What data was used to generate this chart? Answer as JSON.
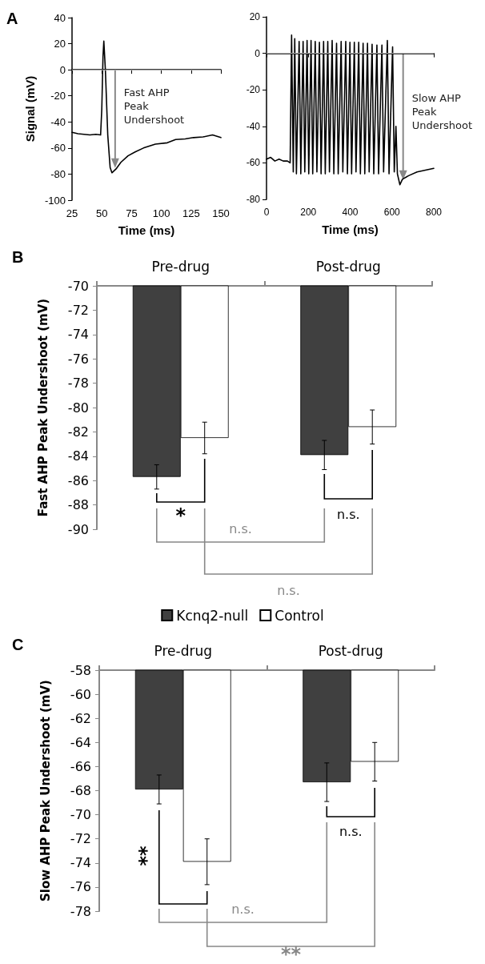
{
  "chart_data": [
    {
      "type": "line",
      "xlabel": "Time (ms)",
      "ylabel": "Signal (mV)",
      "xlim": [
        25,
        150
      ],
      "xticks": [
        25,
        50,
        75,
        100,
        125,
        150
      ],
      "ylim": [
        -100,
        40
      ],
      "yticks": [
        -100,
        -80,
        -60,
        -40,
        -20,
        0,
        20,
        40
      ],
      "marker": "none",
      "line_style": "solid",
      "series": [
        {
          "color": "#000000",
          "x": [
            25,
            30,
            35,
            40,
            45,
            49,
            50,
            51,
            51.7,
            53,
            55,
            57,
            58.5,
            62,
            66,
            72,
            78,
            85,
            95,
            105,
            112,
            120,
            127,
            135,
            143,
            150
          ],
          "values": [
            -48,
            -49,
            -49.5,
            -50,
            -49.5,
            -50,
            -30,
            10,
            22,
            0,
            -50,
            -75,
            -79,
            -76,
            -71,
            -66,
            -63,
            -60,
            -57,
            -56,
            -53.5,
            -53,
            -52,
            -51.5,
            -50,
            -52
          ]
        }
      ],
      "ref_lines": [
        {
          "axis": "y",
          "value": 0,
          "color": "#aaaaaa"
        }
      ],
      "annotations": [
        "A",
        "Fast AHP Peak Undershoot"
      ]
    },
    {
      "type": "line",
      "xlabel": "Time (ms)",
      "xlim": [
        0,
        800
      ],
      "xticks": [
        0,
        200,
        400,
        600,
        800
      ],
      "ylim": [
        -80,
        20
      ],
      "yticks": [
        -80,
        -60,
        -40,
        -20,
        0,
        20
      ],
      "marker": "none",
      "line_style": "solid",
      "series": [
        {
          "color": "#000000",
          "x": [
            0,
            20,
            40,
            60,
            80,
            100,
            113,
            120,
            128,
            135,
            143,
            156,
            164,
            175,
            183,
            194,
            202,
            213,
            221,
            233,
            241,
            253,
            261,
            273,
            281,
            293,
            301,
            314,
            322,
            335,
            343,
            357,
            365,
            379,
            387,
            399,
            407,
            420,
            428,
            441,
            449,
            462,
            470,
            483,
            491,
            505,
            513,
            528,
            536,
            552,
            560,
            578,
            586,
            603,
            611,
            619,
            626,
            638,
            650,
            680,
            720,
            760,
            800
          ],
          "values": [
            -58,
            -57,
            -59,
            -58,
            -59,
            -59,
            -60,
            10,
            -65,
            8,
            -66,
            6.5,
            -66,
            6.5,
            -65,
            7,
            -66,
            7,
            -66,
            6.5,
            -65,
            6,
            -66,
            6.5,
            -66,
            6.5,
            -65,
            7,
            -66,
            5.5,
            -66,
            6.5,
            -65,
            6.5,
            -66,
            6,
            -66,
            6,
            -65,
            6,
            -66,
            5.5,
            -66,
            5.5,
            -65,
            5,
            -66,
            4.5,
            -66,
            4.5,
            -65,
            7,
            -66,
            3.5,
            -65,
            -40,
            -66,
            -72,
            -69,
            -67,
            -65,
            -64,
            -63
          ]
        }
      ],
      "ref_lines": [
        {
          "axis": "y",
          "value": 0,
          "color": "#aaaaaa"
        }
      ],
      "annotations": [
        "Slow AHP Peak Undershoot"
      ]
    },
    {
      "type": "bar",
      "ylabel": "Fast AHP Peak Undershoot (mV)",
      "categories": [
        "Pre-drug",
        "Post-drug"
      ],
      "ylim": [
        -90,
        -70
      ],
      "yticks": [
        -90,
        -88,
        -86,
        -84,
        -82,
        -80,
        -78,
        -76,
        -74,
        -72,
        -70
      ],
      "legend": "bottom",
      "series": [
        {
          "name": "Kcnq2-null",
          "color": "#404040",
          "values": [
            -85.7,
            -83.9
          ],
          "errors": [
            1.0,
            1.2
          ]
        },
        {
          "name": "Control",
          "color": "#ffffff",
          "values": [
            -82.5,
            -81.6
          ],
          "errors": [
            1.3,
            1.4
          ]
        }
      ],
      "annotations": [
        "B",
        "*",
        "n.s.",
        "n.s.",
        "n.s."
      ]
    },
    {
      "type": "bar",
      "ylabel": "Slow AHP Peak Undershoot (mV)",
      "categories": [
        "Pre-drug",
        "Post-drug"
      ],
      "ylim": [
        -78,
        -58
      ],
      "yticks": [
        -78,
        -76,
        -74,
        -72,
        -70,
        -68,
        -66,
        -64,
        -62,
        -60,
        -58
      ],
      "series": [
        {
          "color": "#404040",
          "values": [
            -67.9,
            -67.3
          ],
          "errors": [
            1.2,
            1.6
          ]
        },
        {
          "color": "#ffffff",
          "values": [
            -73.9,
            -65.6
          ],
          "errors": [
            1.9,
            1.6
          ]
        }
      ],
      "annotations": [
        "C",
        "**",
        "n.s.",
        "n.s.",
        "**"
      ]
    }
  ]
}
